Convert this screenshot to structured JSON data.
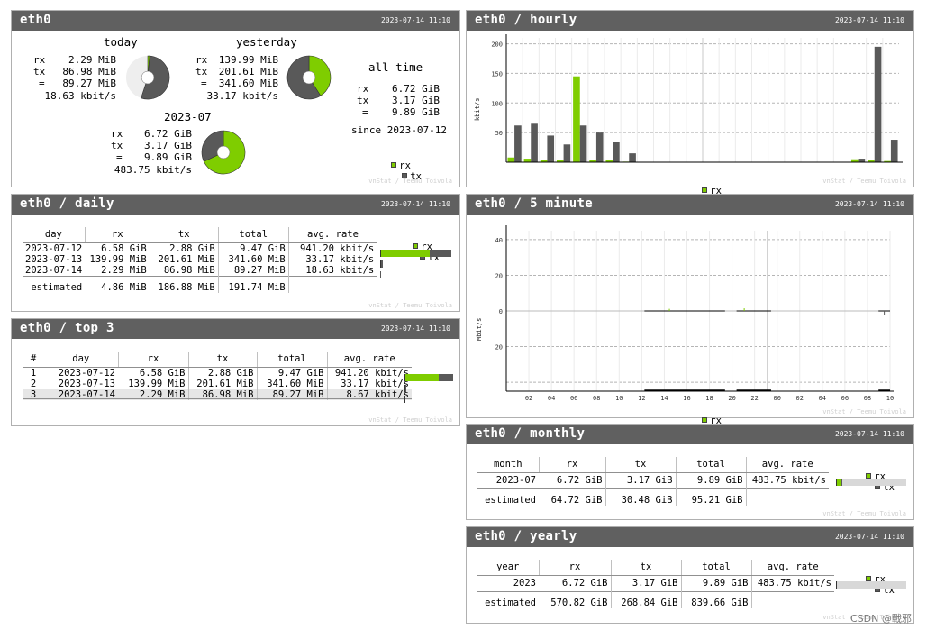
{
  "colors": {
    "rx": "#7fcd00",
    "tx": "#595959",
    "header": "#606060"
  },
  "credit": "vnStat / Teemu Toivola",
  "watermark": "CSDN @戰邪",
  "legend": {
    "rx": "rx",
    "tx": "tx"
  },
  "summary": {
    "title": "eth0",
    "date": "2023-07-14 11:10",
    "today": {
      "heading": "today",
      "rx_label": "rx",
      "rx": "2.29 MiB",
      "tx_label": "tx",
      "tx": "86.98 MiB",
      "eq_label": "=",
      "total": "89.27 MiB",
      "rate": "18.63 kbit/s",
      "rx_frac": 0.026,
      "used_frac": 0.55
    },
    "yesterday": {
      "heading": "yesterday",
      "rx_label": "rx",
      "rx": "139.99 MiB",
      "tx_label": "tx",
      "tx": "201.61 MiB",
      "eq_label": "=",
      "total": "341.60 MiB",
      "rate": "33.17 kbit/s",
      "rx_frac": 0.41,
      "used_frac": 1.0
    },
    "month": {
      "heading": "2023-07",
      "rx_label": "rx",
      "rx": "6.72 GiB",
      "tx_label": "tx",
      "tx": "3.17 GiB",
      "eq_label": "=",
      "total": "9.89 GiB",
      "rate": "483.75 kbit/s",
      "rx_frac": 0.68,
      "used_frac": 1.0
    },
    "alltime": {
      "heading": "all time",
      "rx_label": "rx",
      "rx": "6.72 GiB",
      "tx_label": "tx",
      "tx": "3.17 GiB",
      "eq_label": "=",
      "total": "9.89 GiB",
      "since": "since 2023-07-12"
    }
  },
  "daily": {
    "title": "eth0 / daily",
    "date": "2023-07-14 11:10",
    "headers": [
      "day",
      "rx",
      "tx",
      "total",
      "avg. rate"
    ],
    "rows": [
      {
        "day": "2023-07-12",
        "rx": "6.58 GiB",
        "tx": "2.88 GiB",
        "total": "9.47 GiB",
        "rate": "941.20 kbit/s",
        "rx_frac": 0.7,
        "tx_frac": 0.3
      },
      {
        "day": "2023-07-13",
        "rx": "139.99 MiB",
        "tx": "201.61 MiB",
        "total": "341.60 MiB",
        "rate": "33.17 kbit/s",
        "rx_frac": 0.015,
        "tx_frac": 0.02
      },
      {
        "day": "2023-07-14",
        "rx": "2.29 MiB",
        "tx": "86.98 MiB",
        "total": "89.27 MiB",
        "rate": "18.63 kbit/s",
        "rx_frac": 0.0,
        "tx_frac": 0.01
      }
    ],
    "estimated": {
      "label": "estimated",
      "rx": "4.86 MiB",
      "tx": "186.88 MiB",
      "total": "191.74 MiB"
    }
  },
  "top3": {
    "title": "eth0 / top 3",
    "date": "2023-07-14 11:10",
    "headers": [
      "#",
      "day",
      "rx",
      "tx",
      "total",
      "avg. rate"
    ],
    "rows": [
      {
        "n": "1",
        "day": "2023-07-12",
        "rx": "6.58 GiB",
        "tx": "2.88 GiB",
        "total": "9.47 GiB",
        "rate": "941.20 kbit/s",
        "rx_frac": 0.7,
        "tx_frac": 0.3
      },
      {
        "n": "2",
        "day": "2023-07-13",
        "rx": "139.99 MiB",
        "tx": "201.61 MiB",
        "total": "341.60 MiB",
        "rate": "33.17 kbit/s",
        "rx_frac": 0.015,
        "tx_frac": 0.02
      },
      {
        "n": "3",
        "day": "2023-07-14",
        "rx": "2.29 MiB",
        "tx": "86.98 MiB",
        "total": "89.27 MiB",
        "rate": "8.67 kbit/s",
        "rx_frac": 0.0,
        "tx_frac": 0.0
      }
    ]
  },
  "hourly": {
    "title": "eth0 / hourly",
    "date": "2023-07-14 11:10",
    "chart_data": {
      "type": "bar",
      "ylabel": "kbit/s",
      "ylim": [
        0,
        210
      ],
      "yticks": [
        50,
        100,
        150,
        200
      ],
      "categories": [
        "12",
        "13",
        "14",
        "15",
        "16",
        "17",
        "18",
        "19",
        "20",
        "21",
        "22",
        "23",
        "00",
        "01",
        "02",
        "03",
        "04",
        "05",
        "06",
        "07",
        "08",
        "09",
        "10",
        "11"
      ],
      "series": [
        {
          "name": "rx",
          "values": [
            8,
            6,
            4,
            3,
            145,
            4,
            3,
            1,
            0,
            0,
            0,
            0,
            0,
            0,
            0,
            0,
            0,
            0,
            0,
            0,
            0,
            5,
            3,
            2
          ]
        },
        {
          "name": "tx",
          "values": [
            62,
            65,
            45,
            30,
            62,
            50,
            35,
            15,
            0,
            0,
            0,
            0,
            0,
            0,
            0,
            0,
            0,
            0,
            0,
            0,
            0,
            6,
            195,
            38
          ]
        }
      ]
    }
  },
  "fivemin": {
    "title": "eth0 / 5 minute",
    "date": "2023-07-14 11:10",
    "chart_data": {
      "type": "bar",
      "ylabel": "Mbit/s",
      "ylim": [
        -45,
        45
      ],
      "yticks": [
        -40,
        -20,
        0,
        20,
        40
      ],
      "ytick_labels": [
        "",
        "20",
        "0",
        "20",
        "40"
      ],
      "xlabels": [
        "02",
        "04",
        "06",
        "08",
        "10",
        "12",
        "14",
        "16",
        "18",
        "20",
        "22",
        "00",
        "02",
        "04",
        "06",
        "08",
        "10"
      ],
      "data_spans": [
        [
          0.36,
          0.57
        ],
        [
          0.6,
          0.69
        ],
        [
          0.97,
          1.0
        ]
      ],
      "spikes": [
        {
          "x": 0.425,
          "rx": 1.2,
          "tx": 0
        },
        {
          "x": 0.62,
          "rx": 1.5,
          "tx": 0
        },
        {
          "x": 0.985,
          "rx": 0,
          "tx": -2.5
        }
      ]
    }
  },
  "monthly": {
    "title": "eth0 / monthly",
    "date": "2023-07-14 11:10",
    "headers": [
      "month",
      "rx",
      "tx",
      "total",
      "avg. rate"
    ],
    "rows": [
      {
        "period": "2023-07",
        "rx": "6.72 GiB",
        "tx": "3.17 GiB",
        "total": "9.89 GiB",
        "rate": "483.75 kbit/s",
        "rx_frac": 0.06,
        "tx_frac": 0.03
      }
    ],
    "estimated": {
      "label": "estimated",
      "rx": "64.72 GiB",
      "tx": "30.48 GiB",
      "total": "95.21 GiB"
    }
  },
  "yearly": {
    "title": "eth0 / yearly",
    "date": "2023-07-14 11:10",
    "headers": [
      "year",
      "rx",
      "tx",
      "total",
      "avg. rate"
    ],
    "rows": [
      {
        "period": "2023",
        "rx": "6.72 GiB",
        "tx": "3.17 GiB",
        "total": "9.89 GiB",
        "rate": "483.75 kbit/s",
        "rx_frac": 0.01,
        "tx_frac": 0.005
      }
    ],
    "estimated": {
      "label": "estimated",
      "rx": "570.82 GiB",
      "tx": "268.84 GiB",
      "total": "839.66 GiB"
    }
  }
}
